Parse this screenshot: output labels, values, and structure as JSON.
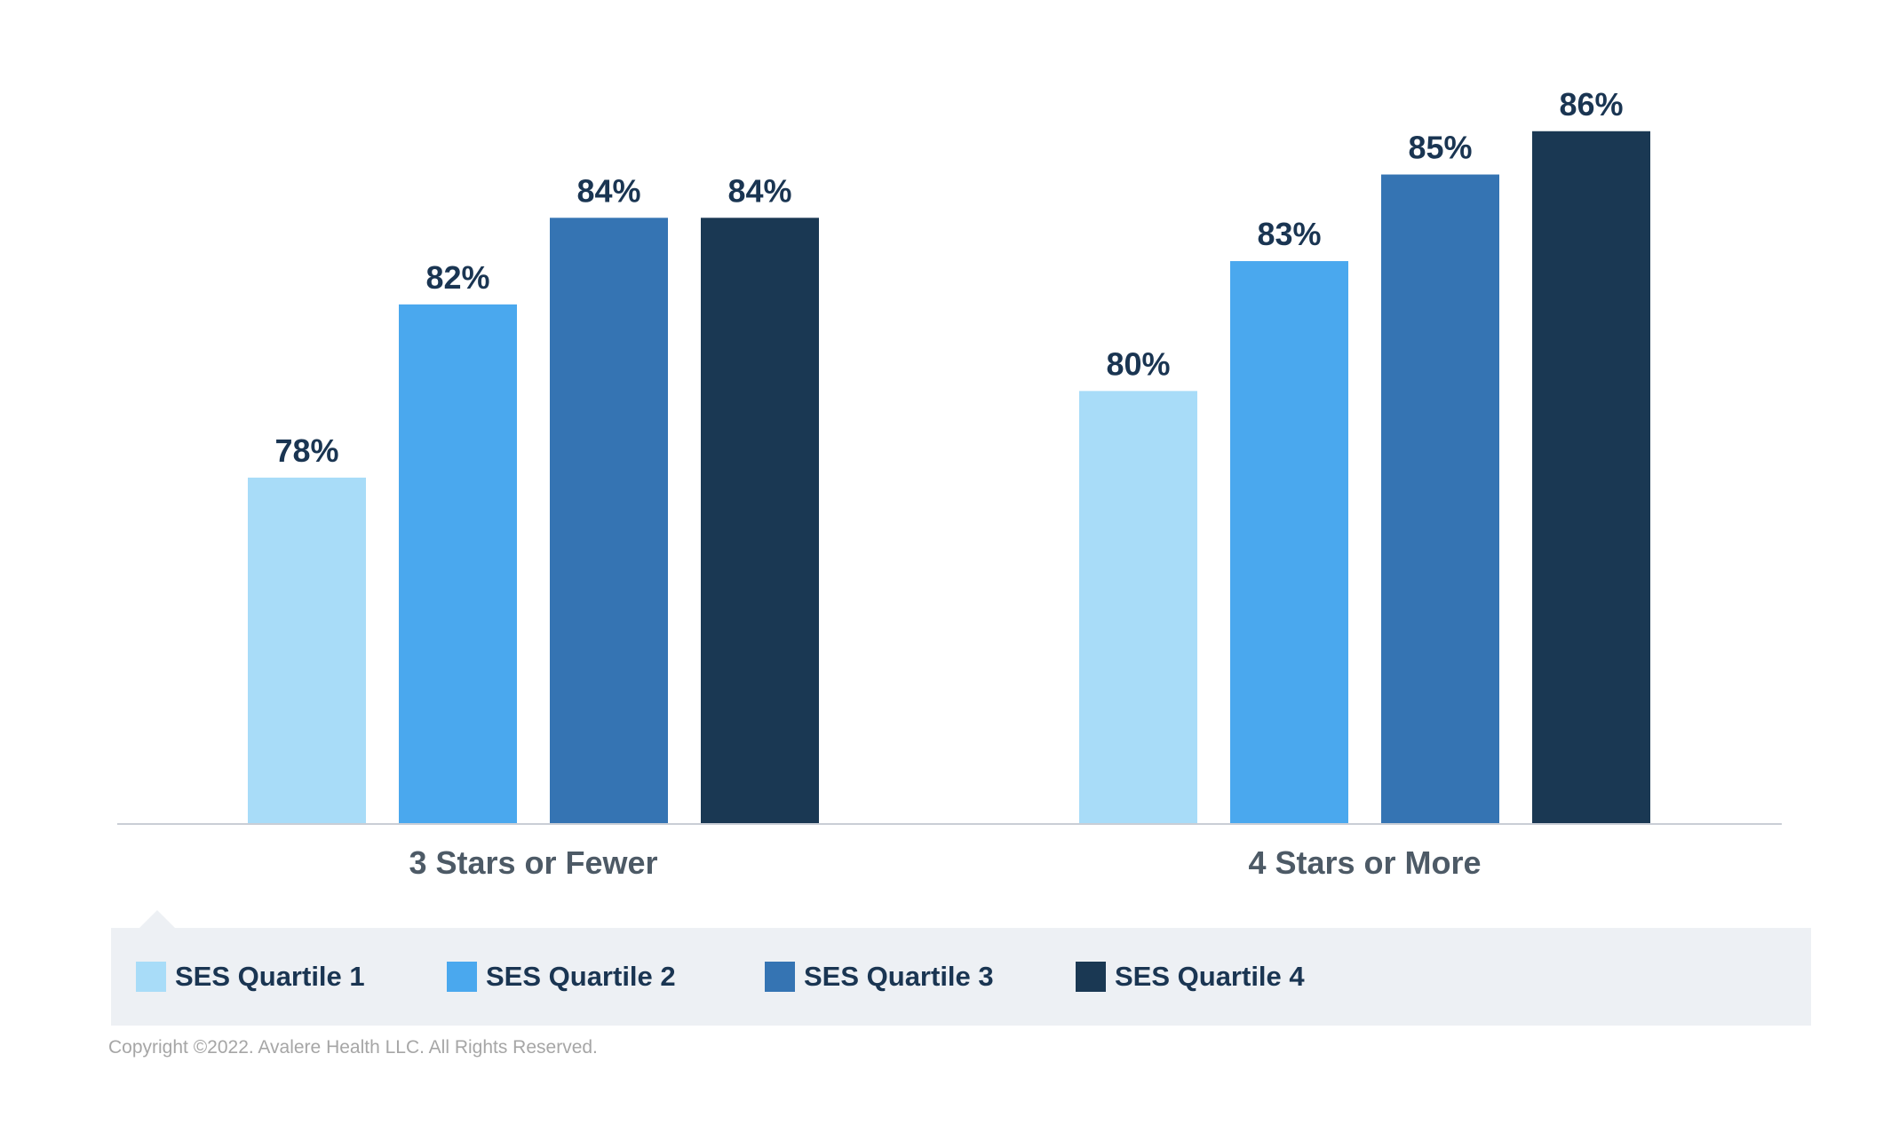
{
  "chart_data": {
    "type": "bar",
    "categories": [
      "3 Stars or Fewer",
      "4 Stars or More"
    ],
    "series": [
      {
        "name": "SES Quartile 1",
        "color": "#a8dcf8",
        "values": [
          78,
          80
        ],
        "labels": [
          "78%",
          "80%"
        ]
      },
      {
        "name": "SES Quartile 2",
        "color": "#4aa8ee",
        "values": [
          82,
          83
        ],
        "labels": [
          "82%",
          "83%"
        ]
      },
      {
        "name": "SES Quartile 3",
        "color": "#3574b3",
        "values": [
          84,
          85
        ],
        "labels": [
          "84%",
          "85%"
        ]
      },
      {
        "name": "SES Quartile 4",
        "color": "#1a3853",
        "values": [
          84,
          86
        ],
        "labels": [
          "84%",
          "86%"
        ]
      }
    ],
    "title": "",
    "xlabel": "",
    "ylabel": "",
    "ylim": [
      70,
      87
    ],
    "grid": false,
    "legend_position": "bottom"
  },
  "footer": {
    "copyright": "Copyright ©2022. Avalere Health LLC. All Rights Reserved."
  }
}
